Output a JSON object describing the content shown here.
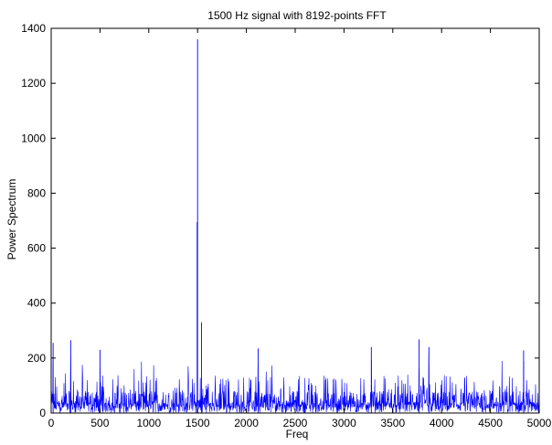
{
  "chart_data": {
    "type": "line",
    "title": "1500 Hz signal with 8192-points FFT",
    "xlabel": "Freq",
    "ylabel": "Power Spectrum",
    "xlim": [
      0,
      5000
    ],
    "ylim": [
      0,
      1400
    ],
    "x_ticks": [
      0,
      500,
      1000,
      1500,
      2000,
      2500,
      3000,
      3500,
      4000,
      4500,
      5000
    ],
    "y_ticks": [
      0,
      200,
      400,
      600,
      800,
      1000,
      1200,
      1400
    ],
    "grid": false,
    "legend": "none",
    "series_color": "#0000ff",
    "noise_floor": {
      "typical_max": 120,
      "occasional_max": 270,
      "note_freqs": [
        20,
        200,
        320,
        500,
        850,
        1050,
        2120,
        3280,
        3770,
        3870,
        4620,
        4840
      ]
    },
    "peaks": [
      {
        "x": 1500,
        "y": 1360
      },
      {
        "x": 1496,
        "y": 695
      },
      {
        "x": 1540,
        "y": 330
      },
      {
        "x": 20,
        "y": 255
      },
      {
        "x": 200,
        "y": 265
      },
      {
        "x": 500,
        "y": 230
      },
      {
        "x": 2120,
        "y": 235
      },
      {
        "x": 3280,
        "y": 240
      },
      {
        "x": 3770,
        "y": 268
      },
      {
        "x": 3870,
        "y": 240
      },
      {
        "x": 4840,
        "y": 228
      }
    ]
  }
}
